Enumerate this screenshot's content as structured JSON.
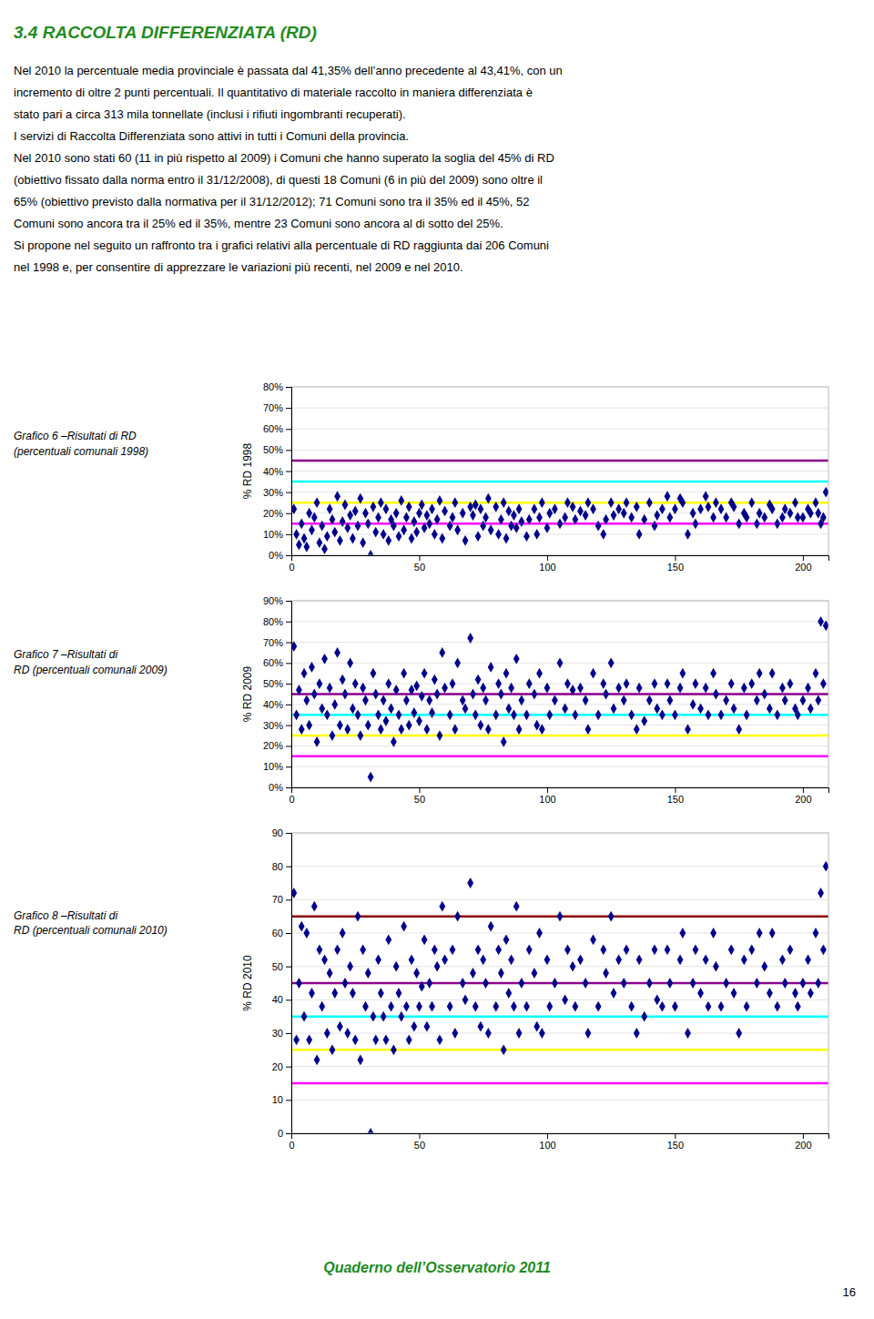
{
  "header": {
    "text": "3.4   RACCOLTA DIFFERENZIATA (RD)",
    "color": "#228B22"
  },
  "body_lines": [
    "Nel 2010 la percentuale media provinciale è passata dal 41,35% dell’anno precedente al 43,41%, con un",
    "incremento di oltre 2 punti percentuali. Il quantitativo di materiale raccolto in maniera differenziata è",
    "stato pari a circa 313 mila tonnellate (inclusi i rifiuti ingombranti recuperati).",
    "I servizi di Raccolta Differenziata sono attivi in tutti i Comuni della provincia.",
    "Nel 2010 sono stati 60 (11 in più rispetto al 2009) i Comuni che hanno superato la soglia del 45% di RD",
    "(obiettivo fissato dalla norma entro il 31/12/2008), di questi 18 Comuni (6 in più del 2009) sono oltre il",
    "65% (obiettivo previsto dalla normativa per il 31/12/2012); 71 Comuni sono tra il 35% ed il 45%, 52",
    "Comuni sono ancora tra il 25% ed il 35%, mentre 23 Comuni sono ancora al di sotto del 25%.",
    "Si propone nel seguito un raffronto tra i grafici relativi alla percentuale di RD raggiunta dai 206 Comuni",
    "nel 1998 e, per consentire di apprezzare le variazioni più recenti, nel 2009 e nel 2010."
  ],
  "footer": {
    "text": "Quaderno dell’Osservatorio 2011",
    "color": "#228B22"
  },
  "page_number": "16",
  "chart_data": [
    {
      "type": "scatter",
      "title": "Grafico 6 –Risultati di RD\n(percentuali comunali 1998)",
      "ylabel": "% RD 1998",
      "x": [
        1,
        2,
        3,
        4,
        5,
        6,
        7,
        8,
        9,
        10,
        11,
        12,
        13,
        14,
        15,
        16,
        17,
        18,
        19,
        20,
        21,
        22,
        23,
        24,
        25,
        26,
        27,
        28,
        29,
        30,
        31,
        32,
        33,
        34,
        35,
        36,
        37,
        38,
        39,
        40,
        41,
        42,
        43,
        44,
        45,
        46,
        47,
        48,
        49,
        50,
        51,
        52,
        53,
        54,
        55,
        56,
        57,
        58,
        59,
        60,
        62,
        63,
        64,
        65,
        67,
        68,
        70,
        71,
        72,
        73,
        74,
        75,
        76,
        77,
        78,
        80,
        81,
        82,
        83,
        84,
        85,
        86,
        87,
        88,
        89,
        90,
        92,
        93,
        95,
        96,
        97,
        98,
        100,
        101,
        103,
        105,
        107,
        108,
        110,
        111,
        113,
        115,
        116,
        118,
        120,
        122,
        123,
        125,
        126,
        128,
        130,
        131,
        133,
        135,
        136,
        138,
        140,
        142,
        143,
        145,
        147,
        148,
        150,
        152,
        153,
        155,
        157,
        158,
        160,
        162,
        163,
        165,
        166,
        168,
        170,
        172,
        173,
        175,
        177,
        178,
        180,
        182,
        183,
        185,
        187,
        188,
        190,
        192,
        193,
        195,
        197,
        198,
        200,
        202,
        203,
        205,
        206,
        207,
        208,
        209
      ],
      "values": [
        22,
        10,
        5,
        15,
        8,
        4,
        20,
        12,
        18,
        25,
        6,
        14,
        3,
        9,
        22,
        17,
        11,
        28,
        7,
        16,
        24,
        13,
        19,
        8,
        21,
        14,
        27,
        6,
        20,
        15,
        0,
        23,
        11,
        18,
        25,
        10,
        22,
        7,
        17,
        14,
        20,
        9,
        26,
        12,
        18,
        23,
        8,
        16,
        11,
        20,
        24,
        13,
        19,
        15,
        22,
        10,
        17,
        26,
        8,
        21,
        14,
        18,
        25,
        12,
        20,
        7,
        23,
        19,
        24,
        9,
        22,
        14,
        18,
        27,
        12,
        23,
        10,
        17,
        25,
        8,
        21,
        14,
        19,
        13,
        22,
        16,
        9,
        17,
        22,
        10,
        18,
        25,
        13,
        20,
        22,
        15,
        18,
        25,
        23,
        17,
        21,
        19,
        25,
        22,
        14,
        10,
        17,
        25,
        19,
        22,
        20,
        25,
        18,
        23,
        10,
        17,
        25,
        14,
        19,
        22,
        28,
        18,
        22,
        27,
        25,
        10,
        20,
        15,
        22,
        28,
        23,
        18,
        25,
        22,
        18,
        25,
        23,
        15,
        20,
        18,
        25,
        15,
        20,
        18,
        24,
        22,
        15,
        18,
        22,
        20,
        25,
        18,
        18,
        22,
        20,
        25,
        20,
        15,
        18,
        30
      ],
      "color": "#00008B",
      "marker": "diamond",
      "xlim": [
        0,
        210
      ],
      "xticks": [
        0,
        50,
        100,
        150,
        200
      ],
      "ylim": [
        0,
        80
      ],
      "yticks": [
        {
          "value": 0,
          "label": "0%"
        },
        {
          "value": 10,
          "label": "10%"
        },
        {
          "value": 20,
          "label": "20%"
        },
        {
          "value": 30,
          "label": "30%"
        },
        {
          "value": 40,
          "label": "40%"
        },
        {
          "value": 50,
          "label": "50%"
        },
        {
          "value": 60,
          "label": "60%"
        },
        {
          "value": 70,
          "label": "70%"
        },
        {
          "value": 80,
          "label": "80%"
        }
      ],
      "grid": true,
      "reference_lines": [
        {
          "value": 15,
          "color": "#FF00FF"
        },
        {
          "value": 25,
          "color": "#FFFF00"
        },
        {
          "value": 35,
          "color": "#00FFFF"
        },
        {
          "value": 45,
          "color": "#8B008B"
        }
      ]
    },
    {
      "type": "scatter",
      "title": "Grafico 7 –Risultati di\nRD (percentuali comunali 2009)",
      "ylabel": "% RD 2009",
      "x": [
        1,
        2,
        3,
        4,
        5,
        6,
        7,
        8,
        9,
        10,
        11,
        12,
        13,
        14,
        15,
        16,
        17,
        18,
        19,
        20,
        21,
        22,
        23,
        24,
        25,
        26,
        27,
        28,
        29,
        30,
        31,
        32,
        33,
        34,
        35,
        36,
        37,
        38,
        39,
        40,
        41,
        42,
        43,
        44,
        45,
        46,
        47,
        48,
        49,
        50,
        51,
        52,
        53,
        54,
        55,
        56,
        57,
        58,
        59,
        60,
        62,
        63,
        64,
        65,
        67,
        68,
        70,
        71,
        72,
        73,
        74,
        75,
        76,
        77,
        78,
        80,
        81,
        82,
        83,
        84,
        85,
        86,
        87,
        88,
        89,
        90,
        92,
        93,
        95,
        96,
        97,
        98,
        100,
        101,
        103,
        105,
        107,
        108,
        110,
        111,
        113,
        115,
        116,
        118,
        120,
        122,
        123,
        125,
        126,
        128,
        130,
        131,
        133,
        135,
        136,
        138,
        140,
        142,
        143,
        145,
        147,
        148,
        150,
        152,
        153,
        155,
        157,
        158,
        160,
        162,
        163,
        165,
        166,
        168,
        170,
        172,
        173,
        175,
        177,
        178,
        180,
        182,
        183,
        185,
        187,
        188,
        190,
        192,
        193,
        195,
        197,
        198,
        200,
        202,
        203,
        205,
        206,
        207,
        208,
        209
      ],
      "values": [
        68,
        35,
        47,
        28,
        55,
        42,
        30,
        58,
        45,
        22,
        50,
        38,
        62,
        35,
        48,
        25,
        40,
        65,
        30,
        52,
        45,
        28,
        60,
        38,
        50,
        35,
        25,
        48,
        42,
        30,
        5,
        55,
        45,
        35,
        28,
        42,
        32,
        50,
        38,
        22,
        47,
        35,
        28,
        55,
        42,
        30,
        47,
        36,
        49,
        32,
        44,
        55,
        28,
        42,
        36,
        52,
        45,
        25,
        65,
        48,
        35,
        50,
        28,
        60,
        42,
        38,
        72,
        45,
        35,
        52,
        30,
        48,
        42,
        28,
        58,
        35,
        50,
        45,
        22,
        55,
        38,
        48,
        35,
        62,
        28,
        42,
        35,
        50,
        45,
        30,
        55,
        28,
        48,
        35,
        42,
        60,
        38,
        50,
        47,
        35,
        48,
        42,
        28,
        55,
        35,
        50,
        45,
        60,
        38,
        48,
        42,
        50,
        35,
        28,
        48,
        32,
        42,
        50,
        38,
        35,
        50,
        42,
        35,
        48,
        55,
        28,
        40,
        50,
        38,
        48,
        35,
        55,
        45,
        35,
        42,
        50,
        38,
        28,
        48,
        35,
        50,
        42,
        55,
        45,
        38,
        55,
        35,
        48,
        42,
        50,
        38,
        35,
        42,
        48,
        38,
        55,
        42,
        80,
        50,
        78
      ],
      "color": "#00008B",
      "marker": "diamond",
      "xlim": [
        0,
        210
      ],
      "xticks": [
        0,
        50,
        100,
        150,
        200
      ],
      "ylim": [
        0,
        90
      ],
      "yticks": [
        {
          "value": 0,
          "label": "0%"
        },
        {
          "value": 10,
          "label": "10%"
        },
        {
          "value": 20,
          "label": "20%"
        },
        {
          "value": 30,
          "label": "30%"
        },
        {
          "value": 40,
          "label": "40%"
        },
        {
          "value": 50,
          "label": "50%"
        },
        {
          "value": 60,
          "label": "60%"
        },
        {
          "value": 70,
          "label": "70%"
        },
        {
          "value": 80,
          "label": "80%"
        },
        {
          "value": 90,
          "label": "90%"
        }
      ],
      "grid": true,
      "reference_lines": [
        {
          "value": 15,
          "color": "#FF00FF"
        },
        {
          "value": 25,
          "color": "#FFFF00"
        },
        {
          "value": 35,
          "color": "#00FFFF"
        },
        {
          "value": 45,
          "color": "#8B008B"
        }
      ]
    },
    {
      "type": "scatter",
      "title": "Grafico 8 –Risultati di\nRD (percentuali comunali 2010)",
      "ylabel": "% RD 2010",
      "x": [
        1,
        2,
        3,
        4,
        5,
        6,
        7,
        8,
        9,
        10,
        11,
        12,
        13,
        14,
        15,
        16,
        17,
        18,
        19,
        20,
        21,
        22,
        23,
        24,
        25,
        26,
        27,
        28,
        29,
        30,
        31,
        32,
        33,
        34,
        35,
        36,
        37,
        38,
        39,
        40,
        41,
        42,
        43,
        44,
        45,
        46,
        47,
        48,
        49,
        50,
        51,
        52,
        53,
        54,
        55,
        56,
        57,
        58,
        59,
        60,
        62,
        63,
        64,
        65,
        67,
        68,
        70,
        71,
        72,
        73,
        74,
        75,
        76,
        77,
        78,
        80,
        81,
        82,
        83,
        84,
        85,
        86,
        87,
        88,
        89,
        90,
        92,
        93,
        95,
        96,
        97,
        98,
        100,
        101,
        103,
        105,
        107,
        108,
        110,
        111,
        113,
        115,
        116,
        118,
        120,
        122,
        123,
        125,
        126,
        128,
        130,
        131,
        133,
        135,
        136,
        138,
        140,
        142,
        143,
        145,
        147,
        148,
        150,
        152,
        153,
        155,
        157,
        158,
        160,
        162,
        163,
        165,
        166,
        168,
        170,
        172,
        173,
        175,
        177,
        178,
        180,
        182,
        183,
        185,
        187,
        188,
        190,
        192,
        193,
        195,
        197,
        198,
        200,
        202,
        203,
        205,
        206,
        207,
        208,
        209
      ],
      "values": [
        72,
        28,
        45,
        62,
        35,
        60,
        28,
        42,
        68,
        22,
        55,
        38,
        52,
        30,
        48,
        25,
        42,
        55,
        32,
        60,
        45,
        30,
        50,
        42,
        28,
        65,
        22,
        55,
        38,
        48,
        0,
        35,
        28,
        52,
        42,
        35,
        28,
        58,
        38,
        25,
        50,
        42,
        35,
        62,
        38,
        28,
        52,
        32,
        48,
        38,
        44,
        58,
        32,
        45,
        38,
        55,
        50,
        28,
        68,
        52,
        38,
        55,
        30,
        65,
        45,
        40,
        75,
        48,
        38,
        55,
        32,
        52,
        45,
        30,
        62,
        38,
        55,
        48,
        25,
        58,
        42,
        52,
        38,
        68,
        30,
        45,
        38,
        55,
        48,
        32,
        60,
        30,
        52,
        38,
        45,
        65,
        40,
        55,
        50,
        38,
        52,
        45,
        30,
        58,
        38,
        55,
        48,
        65,
        42,
        52,
        45,
        55,
        38,
        30,
        52,
        35,
        45,
        55,
        40,
        38,
        55,
        45,
        38,
        52,
        60,
        30,
        45,
        55,
        42,
        52,
        38,
        60,
        50,
        38,
        45,
        55,
        42,
        30,
        52,
        38,
        55,
        45,
        60,
        50,
        42,
        60,
        38,
        52,
        45,
        55,
        42,
        38,
        45,
        52,
        42,
        60,
        45,
        72,
        55,
        80
      ],
      "color": "#00008B",
      "marker": "diamond",
      "xlim": [
        0,
        210
      ],
      "xticks": [
        0,
        50,
        100,
        150,
        200
      ],
      "ylim": [
        0,
        90
      ],
      "yticks": [
        0,
        10,
        20,
        30,
        40,
        50,
        60,
        70,
        80,
        90
      ],
      "grid": true,
      "reference_lines": [
        {
          "value": 15,
          "color": "#FF00FF"
        },
        {
          "value": 25,
          "color": "#FFFF00"
        },
        {
          "value": 35,
          "color": "#00FFFF"
        },
        {
          "value": 45,
          "color": "#8B008B"
        },
        {
          "value": 65,
          "color": "#8B0000"
        }
      ]
    }
  ]
}
